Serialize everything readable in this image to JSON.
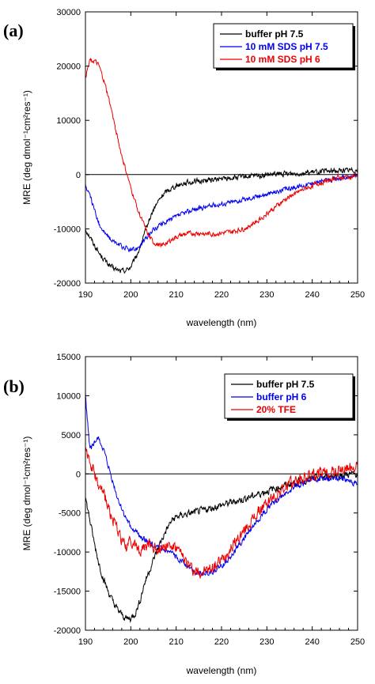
{
  "chart_data": [
    {
      "type": "line",
      "panel_label": "(a)",
      "xlabel": "wavelength (nm)",
      "ylabel": "MRE (deg dmol⁻¹cm²res⁻¹)",
      "xlim": [
        190,
        250
      ],
      "ylim": [
        -20000,
        30000
      ],
      "xticks": [
        190,
        200,
        210,
        220,
        230,
        240,
        250
      ],
      "yticks": [
        -20000,
        -10000,
        0,
        10000,
        20000,
        30000
      ],
      "zero_line": true,
      "grid": false,
      "legend_position": "top-right",
      "series": [
        {
          "name": "buffer pH 7.5",
          "color": "#000000",
          "noise": 700,
          "x": [
            190,
            191,
            192,
            193,
            194,
            195,
            196,
            197,
            198,
            199,
            200,
            201,
            202,
            203,
            204,
            205,
            206,
            207,
            208,
            210,
            212,
            215,
            220,
            225,
            230,
            235,
            240,
            245,
            250
          ],
          "y": [
            -10000,
            -11500,
            -13000,
            -14500,
            -15500,
            -16500,
            -17200,
            -17600,
            -17800,
            -17600,
            -17000,
            -15500,
            -13500,
            -11000,
            -8500,
            -6500,
            -5000,
            -3800,
            -3000,
            -2000,
            -1500,
            -1200,
            -800,
            -400,
            -100,
            200,
            400,
            700,
            900
          ]
        },
        {
          "name": "10 mM SDS pH 7.5",
          "color": "#0000ee",
          "noise": 650,
          "x": [
            190,
            191,
            192,
            193,
            194,
            195,
            196,
            197,
            198,
            199,
            200,
            201,
            202,
            203,
            204,
            205,
            206,
            208,
            210,
            212,
            215,
            220,
            225,
            230,
            235,
            240,
            245,
            250
          ],
          "y": [
            -2000,
            -4000,
            -6500,
            -9000,
            -10500,
            -11500,
            -12200,
            -12800,
            -13300,
            -13600,
            -14000,
            -13800,
            -13000,
            -12200,
            -11200,
            -10200,
            -9500,
            -8600,
            -7800,
            -7000,
            -6200,
            -5400,
            -4600,
            -3600,
            -2500,
            -1600,
            -800,
            -200
          ]
        },
        {
          "name": "10 mM SDS pH 6",
          "color": "#ee0000",
          "noise": 650,
          "x": [
            190,
            191,
            192,
            193,
            194,
            195,
            196,
            197,
            198,
            199,
            200,
            201,
            202,
            203,
            204,
            205,
            206,
            207,
            208,
            210,
            212,
            215,
            218,
            222,
            225,
            228,
            231,
            235,
            240,
            245,
            250
          ],
          "y": [
            18000,
            21000,
            21000,
            20000,
            17500,
            14500,
            11000,
            7000,
            3500,
            500,
            -2500,
            -5000,
            -7500,
            -9500,
            -11500,
            -12500,
            -13000,
            -13000,
            -12500,
            -11500,
            -11000,
            -10800,
            -11000,
            -10600,
            -10000,
            -8500,
            -6500,
            -4000,
            -2000,
            -700,
            -200
          ]
        }
      ]
    },
    {
      "type": "line",
      "panel_label": "(b)",
      "xlabel": "wavelength (nm)",
      "ylabel": "MRE (deg dmol⁻¹cm²res⁻¹)",
      "xlim": [
        190,
        250
      ],
      "ylim": [
        -20000,
        15000
      ],
      "xticks": [
        190,
        200,
        210,
        220,
        230,
        240,
        250
      ],
      "yticks": [
        -20000,
        -15000,
        -10000,
        -5000,
        0,
        5000,
        10000,
        15000
      ],
      "zero_line": true,
      "grid": false,
      "legend_position": "top-right",
      "series": [
        {
          "name": "buffer pH 7.5",
          "color": "#000000",
          "noise": 650,
          "x": [
            190,
            191,
            192,
            193,
            194,
            195,
            196,
            197,
            198,
            199,
            200,
            201,
            202,
            203,
            204,
            205,
            206,
            207,
            208,
            209,
            210,
            212,
            215,
            220,
            225,
            230,
            235,
            240,
            245,
            250
          ],
          "y": [
            -3000,
            -6000,
            -9000,
            -11500,
            -13500,
            -15000,
            -16300,
            -17300,
            -18000,
            -18500,
            -18500,
            -17800,
            -16300,
            -14000,
            -12500,
            -11000,
            -9500,
            -8200,
            -7000,
            -6000,
            -5500,
            -5200,
            -4800,
            -4000,
            -3200,
            -2200,
            -1300,
            -600,
            -200,
            0
          ]
        },
        {
          "name": "buffer pH 6",
          "color": "#0000ee",
          "noise": 550,
          "x": [
            190,
            191,
            192,
            193,
            194,
            195,
            196,
            197,
            198,
            199,
            200,
            202,
            204,
            206,
            208,
            210,
            212,
            214,
            216,
            218,
            220,
            222,
            224,
            226,
            228,
            230,
            233,
            236,
            240,
            245,
            250
          ],
          "y": [
            10000,
            3000,
            4000,
            4500,
            3000,
            1000,
            -1000,
            -3000,
            -4500,
            -5800,
            -6800,
            -8000,
            -8800,
            -9500,
            -10000,
            -10500,
            -11500,
            -12500,
            -12800,
            -12500,
            -11800,
            -10500,
            -9000,
            -7500,
            -6000,
            -4500,
            -3000,
            -1700,
            -700,
            -500,
            -1200
          ]
        },
        {
          "name": "20% TFE",
          "color": "#ee0000",
          "noise": 1100,
          "x": [
            190,
            191,
            192,
            193,
            194,
            195,
            196,
            197,
            198,
            199,
            200,
            202,
            204,
            206,
            208,
            210,
            212,
            214,
            216,
            218,
            220,
            222,
            224,
            226,
            228,
            230,
            233,
            236,
            240,
            245,
            250
          ],
          "y": [
            3500,
            1500,
            0,
            -2000,
            -2500,
            -4000,
            -6000,
            -7000,
            -8500,
            -9500,
            -8500,
            -10000,
            -9000,
            -9500,
            -9000,
            -9500,
            -11000,
            -12500,
            -12500,
            -12000,
            -11000,
            -9500,
            -8000,
            -6500,
            -5000,
            -3700,
            -2200,
            -1000,
            -200,
            300,
            1000
          ]
        }
      ]
    }
  ]
}
